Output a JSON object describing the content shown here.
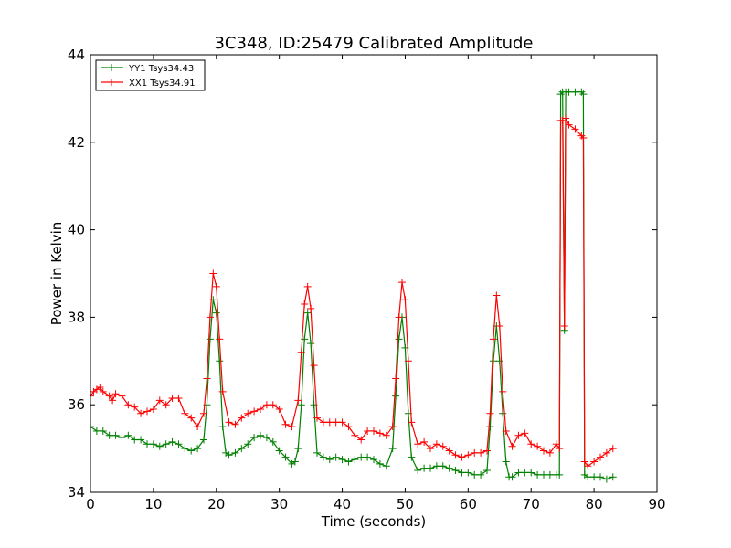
{
  "chart_data": {
    "type": "line",
    "title": "3C348, ID:25479 Calibrated Amplitude",
    "xlabel": "Time (seconds)",
    "ylabel": "Power in Kelvin",
    "xlim": [
      0,
      90
    ],
    "ylim": [
      34,
      44
    ],
    "xticks": [
      "0",
      "10",
      "20",
      "30",
      "40",
      "50",
      "60",
      "70",
      "80",
      "90"
    ],
    "yticks": [
      "34",
      "36",
      "38",
      "40",
      "42",
      "44"
    ],
    "grid": false,
    "legend_position": "top-left",
    "series": [
      {
        "name": "YY1 Tsys34.43",
        "color": "#008000",
        "marker": "+",
        "points": [
          [
            0,
            35.5
          ],
          [
            1,
            35.4
          ],
          [
            2,
            35.4
          ],
          [
            3,
            35.3
          ],
          [
            4,
            35.3
          ],
          [
            5,
            35.25
          ],
          [
            6,
            35.3
          ],
          [
            7,
            35.2
          ],
          [
            8,
            35.2
          ],
          [
            9,
            35.1
          ],
          [
            10,
            35.1
          ],
          [
            11,
            35.05
          ],
          [
            12,
            35.1
          ],
          [
            13,
            35.15
          ],
          [
            14,
            35.1
          ],
          [
            15,
            35.0
          ],
          [
            16,
            34.95
          ],
          [
            17,
            35.0
          ],
          [
            18,
            35.2
          ],
          [
            18.5,
            36.0
          ],
          [
            19,
            37.5
          ],
          [
            19.5,
            38.4
          ],
          [
            20,
            38.1
          ],
          [
            20.5,
            37.0
          ],
          [
            21,
            35.5
          ],
          [
            21.5,
            34.9
          ],
          [
            22,
            34.85
          ],
          [
            23,
            34.9
          ],
          [
            24,
            35.0
          ],
          [
            25,
            35.1
          ],
          [
            26,
            35.25
          ],
          [
            27,
            35.3
          ],
          [
            28,
            35.25
          ],
          [
            29,
            35.15
          ],
          [
            30,
            34.95
          ],
          [
            31,
            34.8
          ],
          [
            32,
            34.65
          ],
          [
            32.5,
            34.7
          ],
          [
            33,
            35.0
          ],
          [
            33.5,
            36.0
          ],
          [
            34,
            37.5
          ],
          [
            34.5,
            38.1
          ],
          [
            35,
            37.4
          ],
          [
            35.5,
            36.0
          ],
          [
            36,
            34.9
          ],
          [
            37,
            34.8
          ],
          [
            38,
            34.75
          ],
          [
            39,
            34.8
          ],
          [
            40,
            34.75
          ],
          [
            41,
            34.7
          ],
          [
            42,
            34.75
          ],
          [
            43,
            34.8
          ],
          [
            44,
            34.8
          ],
          [
            45,
            34.75
          ],
          [
            46,
            34.65
          ],
          [
            47,
            34.6
          ],
          [
            48,
            35.0
          ],
          [
            48.5,
            36.2
          ],
          [
            49,
            37.5
          ],
          [
            49.5,
            38.0
          ],
          [
            50,
            37.3
          ],
          [
            50.5,
            35.8
          ],
          [
            51,
            34.8
          ],
          [
            52,
            34.5
          ],
          [
            53,
            34.55
          ],
          [
            54,
            34.55
          ],
          [
            55,
            34.6
          ],
          [
            56,
            34.6
          ],
          [
            57,
            34.55
          ],
          [
            58,
            34.5
          ],
          [
            59,
            34.45
          ],
          [
            60,
            34.45
          ],
          [
            61,
            34.4
          ],
          [
            62,
            34.4
          ],
          [
            63,
            34.5
          ],
          [
            63.5,
            35.5
          ],
          [
            64,
            37.0
          ],
          [
            64.5,
            37.8
          ],
          [
            65,
            37.0
          ],
          [
            65.5,
            35.8
          ],
          [
            66,
            34.7
          ],
          [
            66.5,
            34.35
          ],
          [
            67,
            34.35
          ],
          [
            68,
            34.45
          ],
          [
            69,
            34.45
          ],
          [
            70,
            34.45
          ],
          [
            71,
            34.4
          ],
          [
            72,
            34.4
          ],
          [
            73,
            34.4
          ],
          [
            74,
            34.4
          ],
          [
            74.5,
            34.4
          ],
          [
            74.7,
            43.1
          ],
          [
            75,
            43.15
          ],
          [
            75.3,
            37.7
          ],
          [
            75.5,
            43.15
          ],
          [
            76,
            43.15
          ],
          [
            77,
            43.15
          ],
          [
            78,
            43.15
          ],
          [
            78.3,
            43.1
          ],
          [
            78.5,
            34.4
          ],
          [
            79,
            34.35
          ],
          [
            80,
            34.35
          ],
          [
            81,
            34.35
          ],
          [
            82,
            34.3
          ],
          [
            83,
            34.35
          ]
        ]
      },
      {
        "name": "XX1 Tsys34.91",
        "color": "#ff0000",
        "marker": "+",
        "points": [
          [
            0,
            36.2
          ],
          [
            0.5,
            36.3
          ],
          [
            1,
            36.35
          ],
          [
            1.5,
            36.4
          ],
          [
            2,
            36.3
          ],
          [
            3,
            36.2
          ],
          [
            3.5,
            36.1
          ],
          [
            4,
            36.25
          ],
          [
            5,
            36.2
          ],
          [
            6,
            36.0
          ],
          [
            7,
            35.95
          ],
          [
            8,
            35.8
          ],
          [
            9,
            35.85
          ],
          [
            10,
            35.9
          ],
          [
            11,
            36.1
          ],
          [
            12,
            36.0
          ],
          [
            13,
            36.15
          ],
          [
            14,
            36.15
          ],
          [
            15,
            35.8
          ],
          [
            16,
            35.7
          ],
          [
            17,
            35.5
          ],
          [
            18,
            35.8
          ],
          [
            18.5,
            36.6
          ],
          [
            19,
            38.0
          ],
          [
            19.5,
            39.0
          ],
          [
            20,
            38.7
          ],
          [
            20.5,
            37.5
          ],
          [
            21,
            36.3
          ],
          [
            22,
            35.6
          ],
          [
            23,
            35.55
          ],
          [
            24,
            35.7
          ],
          [
            25,
            35.8
          ],
          [
            26,
            35.85
          ],
          [
            27,
            35.9
          ],
          [
            28,
            36.0
          ],
          [
            29,
            36.0
          ],
          [
            30,
            35.9
          ],
          [
            31,
            35.55
          ],
          [
            32,
            35.5
          ],
          [
            33,
            36.1
          ],
          [
            33.5,
            37.2
          ],
          [
            34,
            38.3
          ],
          [
            34.5,
            38.7
          ],
          [
            35,
            38.2
          ],
          [
            35.5,
            36.9
          ],
          [
            36,
            35.7
          ],
          [
            37,
            35.6
          ],
          [
            38,
            35.6
          ],
          [
            39,
            35.6
          ],
          [
            40,
            35.6
          ],
          [
            41,
            35.5
          ],
          [
            42,
            35.3
          ],
          [
            43,
            35.2
          ],
          [
            44,
            35.4
          ],
          [
            45,
            35.4
          ],
          [
            46,
            35.35
          ],
          [
            47,
            35.3
          ],
          [
            48,
            35.5
          ],
          [
            48.5,
            36.6
          ],
          [
            49,
            38.0
          ],
          [
            49.5,
            38.8
          ],
          [
            50,
            38.4
          ],
          [
            50.5,
            37.0
          ],
          [
            51,
            35.6
          ],
          [
            52,
            35.1
          ],
          [
            53,
            35.15
          ],
          [
            54,
            35.0
          ],
          [
            55,
            35.1
          ],
          [
            56,
            35.05
          ],
          [
            57,
            34.95
          ],
          [
            58,
            34.85
          ],
          [
            59,
            34.8
          ],
          [
            60,
            34.85
          ],
          [
            61,
            34.9
          ],
          [
            62,
            34.9
          ],
          [
            63,
            34.95
          ],
          [
            63.5,
            35.8
          ],
          [
            64,
            37.5
          ],
          [
            64.5,
            38.5
          ],
          [
            65,
            37.8
          ],
          [
            65.5,
            36.3
          ],
          [
            66,
            35.4
          ],
          [
            67,
            35.05
          ],
          [
            68,
            35.3
          ],
          [
            69,
            35.35
          ],
          [
            70,
            35.1
          ],
          [
            71,
            35.05
          ],
          [
            72,
            34.95
          ],
          [
            73,
            34.9
          ],
          [
            74,
            35.1
          ],
          [
            74.5,
            35.0
          ],
          [
            74.7,
            42.5
          ],
          [
            75,
            42.5
          ],
          [
            75.3,
            37.8
          ],
          [
            75.5,
            42.55
          ],
          [
            76,
            42.4
          ],
          [
            77,
            42.3
          ],
          [
            78,
            42.15
          ],
          [
            78.3,
            42.1
          ],
          [
            78.5,
            34.7
          ],
          [
            79,
            34.6
          ],
          [
            80,
            34.7
          ],
          [
            81,
            34.8
          ],
          [
            82,
            34.9
          ],
          [
            83,
            35.0
          ]
        ]
      }
    ]
  }
}
